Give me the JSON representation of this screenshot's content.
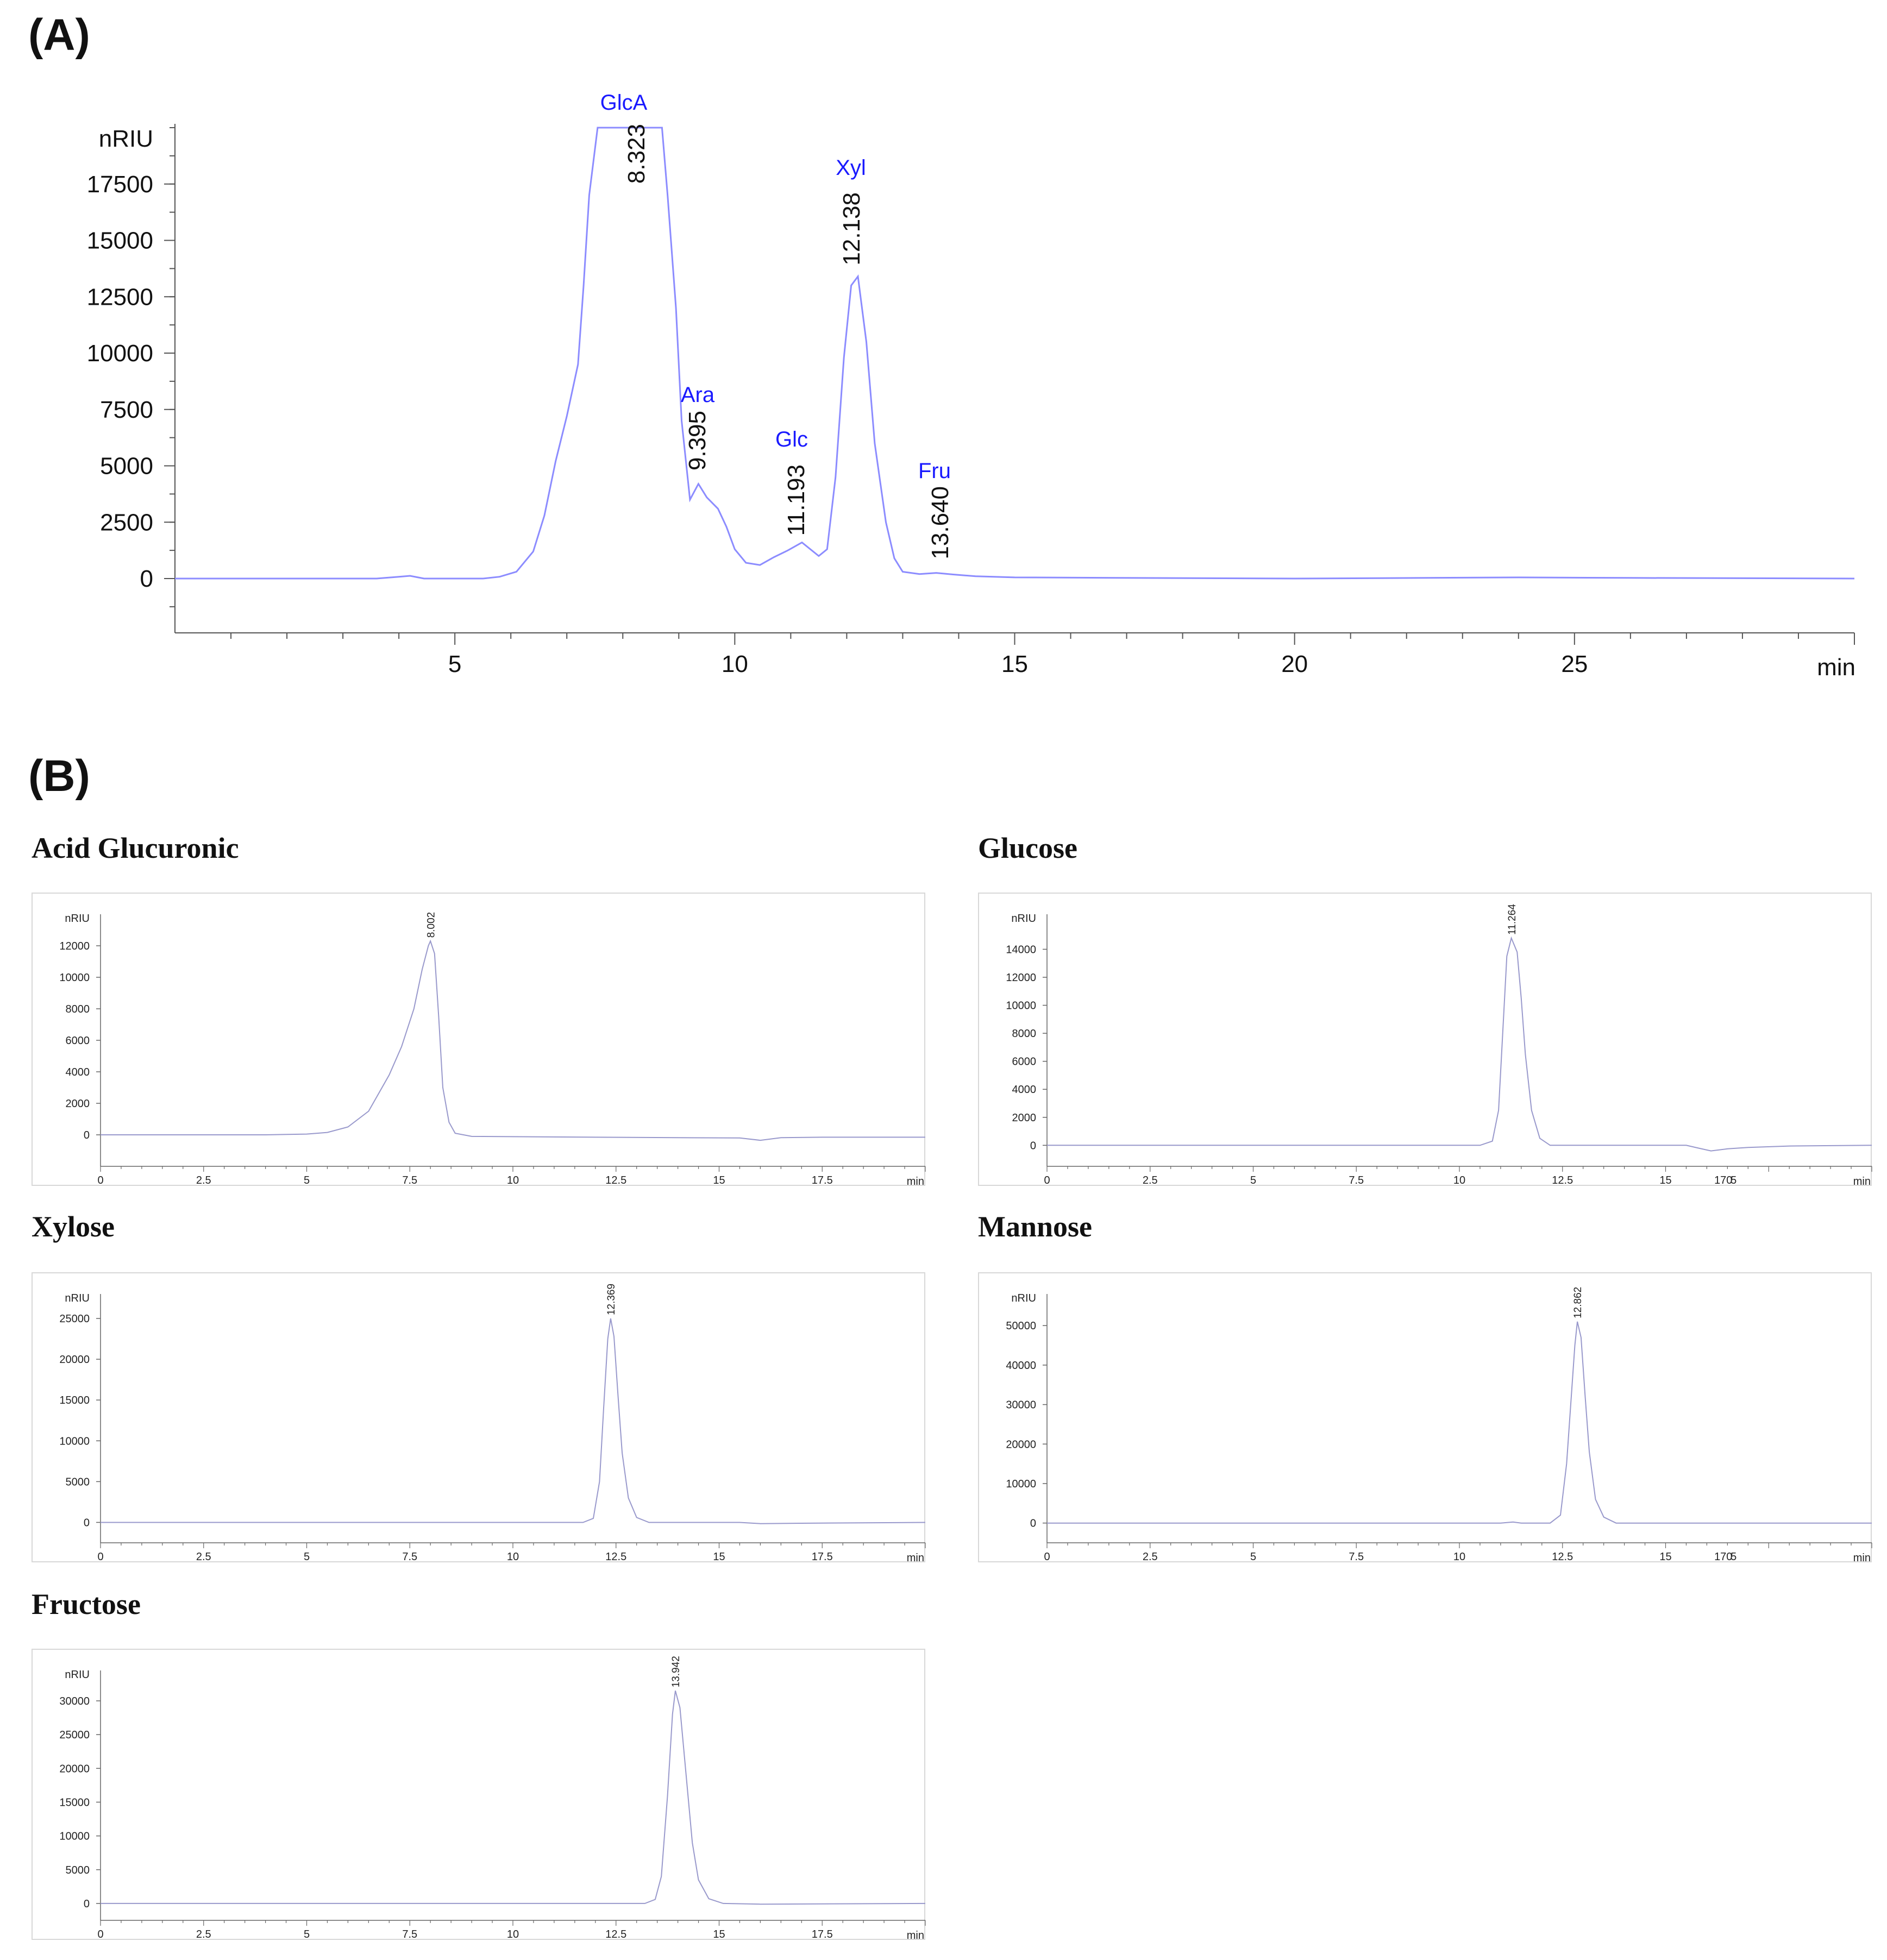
{
  "panel_a_label": "(A)",
  "panel_b_label": "(B)",
  "chart_data": [
    {
      "type": "line",
      "panel": "A",
      "xlabel": "min",
      "ylabel": "nRIU",
      "xlim": [
        0,
        30
      ],
      "ylim": [
        -2500,
        20000
      ],
      "x_ticks": [
        "5",
        "10",
        "15",
        "20",
        "25"
      ],
      "y_ticks": [
        "0",
        "2500",
        "5000",
        "7500",
        "10000",
        "12500",
        "15000",
        "17500"
      ],
      "line_color": "#8c8cff",
      "label_color": "#1a1aff",
      "peaks": [
        {
          "rt": "8.323",
          "name": "GlcA",
          "x": 8.323
        },
        {
          "rt": "9.395",
          "name": "Ara",
          "x": 9.395
        },
        {
          "rt": "11.193",
          "name": "Glc",
          "x": 11.193
        },
        {
          "rt": "12.138",
          "name": "Xyl",
          "x": 12.138
        },
        {
          "rt": "13.640",
          "name": "Fru",
          "x": 13.64
        }
      ],
      "series": [
        {
          "x": [
            0,
            3.6,
            4.0,
            4.2,
            4.45,
            4.8,
            5.5,
            5.8,
            6.1,
            6.4,
            6.6,
            6.8,
            7.0,
            7.2,
            7.3,
            7.4,
            7.55,
            8.0,
            8.7,
            8.8,
            8.95,
            9.05,
            9.2,
            9.35,
            9.5,
            9.7,
            9.85,
            10.0,
            10.2,
            10.45,
            10.7,
            10.95,
            11.2,
            11.5,
            11.65,
            11.8,
            11.95,
            12.08,
            12.2,
            12.35,
            12.5,
            12.7,
            12.85,
            13.0,
            13.3,
            13.6,
            13.9,
            14.3,
            15.0,
            20.0,
            24.0,
            26.0,
            30.0
          ],
          "y": [
            0,
            0,
            80,
            120,
            0,
            0,
            0,
            80,
            300,
            1200,
            2800,
            5200,
            7200,
            9500,
            13000,
            17000,
            20000,
            20000,
            20000,
            17000,
            12000,
            7000,
            3500,
            4200,
            3600,
            3100,
            2300,
            1300,
            700,
            600,
            950,
            1250,
            1600,
            1000,
            1300,
            4500,
            9800,
            13000,
            13400,
            10500,
            6000,
            2500,
            900,
            300,
            200,
            250,
            180,
            100,
            50,
            0,
            50,
            30,
            0
          ]
        }
      ]
    },
    {
      "type": "line",
      "title": "Acid Glucuronic",
      "xlabel": "min",
      "ylabel": "nRIU",
      "xlim": [
        0,
        20
      ],
      "ylim": [
        -2000,
        14000
      ],
      "x_ticks": [
        "0",
        "2.5",
        "5",
        "7.5",
        "10",
        "12.5",
        "15",
        "17.5"
      ],
      "y_ticks": [
        "0",
        "2000",
        "4000",
        "6000",
        "8000",
        "10000",
        "12000"
      ],
      "peak_label": "8.002",
      "peak_x": 8.002,
      "peak_y": 12300,
      "series": [
        {
          "x": [
            0,
            4.0,
            5.0,
            5.5,
            6.0,
            6.5,
            7.0,
            7.3,
            7.6,
            7.8,
            7.95,
            8.0,
            8.1,
            8.2,
            8.3,
            8.45,
            8.6,
            9.0,
            12.0,
            15.5,
            16.0,
            16.5,
            17.5,
            20.0
          ],
          "y": [
            0,
            0,
            50,
            150,
            500,
            1500,
            3800,
            5600,
            8000,
            10500,
            12000,
            12300,
            11500,
            7500,
            3000,
            800,
            100,
            -100,
            -150,
            -200,
            -350,
            -180,
            -150,
            -150
          ]
        }
      ]
    },
    {
      "type": "line",
      "title": "Glucose",
      "xlabel": "min",
      "ylabel": "nRIU",
      "xlim": [
        0,
        20
      ],
      "ylim": [
        -1500,
        16500
      ],
      "x_ticks": [
        "0",
        "2.5",
        "5",
        "7.5",
        "10",
        "12.5",
        "15",
        "170",
        "5",
        "min"
      ],
      "y_ticks": [
        "0",
        "2000",
        "4000",
        "6000",
        "8000",
        "10000",
        "12000",
        "14000"
      ],
      "peak_label": "11.264",
      "peak_x": 11.264,
      "peak_y": 14800,
      "series": [
        {
          "x": [
            0,
            10.5,
            10.8,
            10.95,
            11.05,
            11.15,
            11.26,
            11.4,
            11.5,
            11.6,
            11.75,
            11.95,
            12.2,
            15.5,
            15.8,
            16.1,
            16.5,
            17.0,
            18.0,
            20.0
          ],
          "y": [
            0,
            0,
            300,
            2500,
            8000,
            13500,
            14800,
            13800,
            10500,
            6500,
            2500,
            500,
            0,
            0,
            -200,
            -400,
            -250,
            -150,
            -50,
            0
          ]
        }
      ]
    },
    {
      "type": "line",
      "title": "Xylose",
      "xlabel": "min",
      "ylabel": "nRIU",
      "xlim": [
        0,
        20
      ],
      "ylim": [
        -2500,
        28000
      ],
      "x_ticks": [
        "0",
        "2.5",
        "5",
        "7.5",
        "10",
        "12.5",
        "15",
        "17.5"
      ],
      "y_ticks": [
        "0",
        "5000",
        "10000",
        "15000",
        "20000",
        "25000"
      ],
      "peak_label": "12.369",
      "peak_x": 12.369,
      "peak_y": 25000,
      "series": [
        {
          "x": [
            0,
            11.7,
            11.95,
            12.1,
            12.2,
            12.3,
            12.37,
            12.45,
            12.55,
            12.65,
            12.8,
            13.0,
            13.3,
            15.5,
            16.0,
            17.0,
            20.0
          ],
          "y": [
            0,
            0,
            500,
            5000,
            14000,
            22500,
            25000,
            22800,
            15500,
            8500,
            3000,
            600,
            0,
            0,
            -150,
            -100,
            0
          ]
        }
      ]
    },
    {
      "type": "line",
      "title": "Mannose",
      "xlabel": "min",
      "ylabel": "nRIU",
      "xlim": [
        0,
        20
      ],
      "ylim": [
        -5000,
        58000
      ],
      "x_ticks": [
        "0",
        "2.5",
        "5",
        "7.5",
        "10",
        "12.5",
        "15",
        "170",
        "5",
        "min"
      ],
      "y_ticks": [
        "0",
        "10000",
        "20000",
        "30000",
        "40000",
        "50000"
      ],
      "peak_label": "12.862",
      "peak_x": 12.862,
      "peak_y": 51000,
      "series": [
        {
          "x": [
            0,
            11.0,
            11.3,
            11.5,
            12.2,
            12.45,
            12.6,
            12.7,
            12.8,
            12.86,
            12.95,
            13.05,
            13.15,
            13.3,
            13.5,
            13.8,
            15.0,
            20.0
          ],
          "y": [
            0,
            0,
            250,
            0,
            0,
            2000,
            15000,
            30000,
            45000,
            51000,
            47000,
            32000,
            18000,
            6000,
            1500,
            0,
            0,
            0
          ]
        }
      ]
    },
    {
      "type": "line",
      "title": "Fructose",
      "xlabel": "min",
      "ylabel": "nRIU",
      "xlim": [
        0,
        20
      ],
      "ylim": [
        -2500,
        34500
      ],
      "x_ticks": [
        "0",
        "2.5",
        "5",
        "7.5",
        "10",
        "12.5",
        "15",
        "17.5"
      ],
      "y_ticks": [
        "0",
        "5000",
        "10000",
        "15000",
        "20000",
        "25000",
        "30000"
      ],
      "peak_label": "13.942",
      "peak_x": 13.942,
      "peak_y": 31500,
      "series": [
        {
          "x": [
            0,
            13.2,
            13.45,
            13.6,
            13.75,
            13.87,
            13.94,
            14.05,
            14.2,
            14.35,
            14.5,
            14.75,
            15.1,
            16.0,
            20.0
          ],
          "y": [
            0,
            0,
            600,
            4000,
            16000,
            28000,
            31500,
            29000,
            19000,
            9000,
            3500,
            700,
            0,
            -100,
            0
          ]
        }
      ]
    }
  ]
}
